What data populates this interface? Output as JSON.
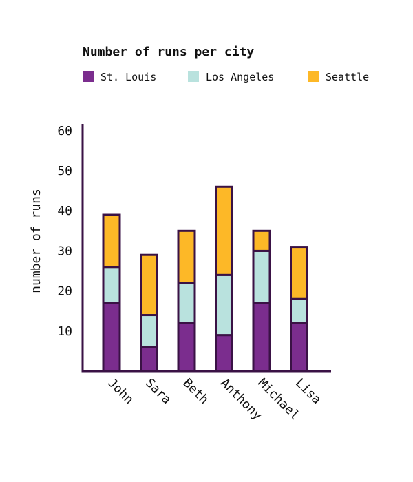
{
  "colors": {
    "axis": "#3a1245",
    "outline": "#3a1245"
  },
  "chart_data": {
    "type": "bar",
    "stacked": true,
    "title": "Number of runs per city",
    "xlabel": "",
    "ylabel": "number of runs",
    "ylim": [
      0,
      62
    ],
    "yticks": [
      10,
      20,
      30,
      40,
      50,
      60
    ],
    "categories": [
      "John",
      "Sara",
      "Beth",
      "Anthony",
      "Michael",
      "Lisa"
    ],
    "series": [
      {
        "name": "St. Louis",
        "color": "#7b2d8e",
        "values": [
          17,
          6,
          12,
          9,
          17,
          12
        ]
      },
      {
        "name": "Los Angeles",
        "color": "#b9e2de",
        "values": [
          9,
          8,
          10,
          15,
          13,
          6
        ]
      },
      {
        "name": "Seattle",
        "color": "#fdb827",
        "values": [
          13,
          15,
          13,
          22,
          5,
          13
        ]
      }
    ],
    "legend_position": "top",
    "grid": false
  }
}
